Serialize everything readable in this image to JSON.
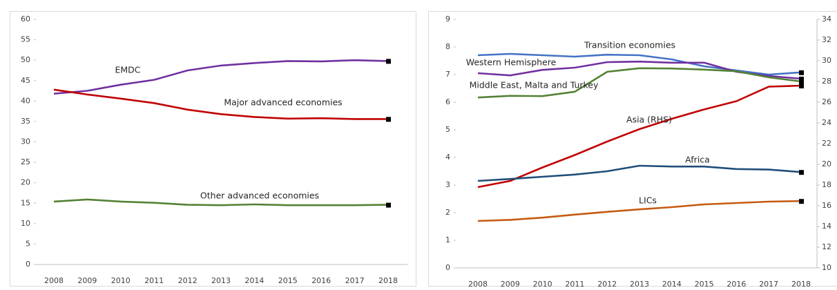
{
  "chart_data": [
    {
      "type": "line",
      "categories": [
        "2008",
        "2009",
        "2010",
        "2011",
        "2012",
        "2013",
        "2014",
        "2015",
        "2016",
        "2017",
        "2018"
      ],
      "ylim": [
        0,
        60
      ],
      "yticks": [
        0,
        5,
        10,
        15,
        20,
        25,
        30,
        35,
        40,
        45,
        50,
        55,
        60
      ],
      "series": [
        {
          "name": "EMDC",
          "color": "#7030a0",
          "values": [
            41.8,
            42.5,
            44.0,
            45.2,
            47.5,
            48.7,
            49.3,
            49.8,
            49.7,
            50.0,
            49.8
          ]
        },
        {
          "name": "Major advanced economies",
          "color": "#c00000",
          "values": [
            42.8,
            41.6,
            40.6,
            39.5,
            37.9,
            36.8,
            36.1,
            35.7,
            35.8,
            35.6,
            35.6
          ]
        },
        {
          "name": "Other advanced economies",
          "color": "#548235",
          "values": [
            15.4,
            15.9,
            15.4,
            15.1,
            14.6,
            14.5,
            14.7,
            14.5,
            14.5,
            14.5,
            14.6
          ]
        }
      ]
    },
    {
      "type": "line",
      "categories": [
        "2008",
        "2009",
        "2010",
        "2011",
        "2012",
        "2013",
        "2014",
        "2015",
        "2016",
        "2017",
        "2018"
      ],
      "ylim": [
        0,
        9
      ],
      "yticks": [
        0,
        1,
        2,
        3,
        4,
        5,
        6,
        7,
        8,
        9
      ],
      "y2lim": [
        10,
        34
      ],
      "y2ticks": [
        10,
        12,
        14,
        16,
        18,
        20,
        22,
        24,
        26,
        28,
        30,
        32,
        34
      ],
      "series": [
        {
          "name": "Transition economies",
          "color": "#4472c4",
          "values": [
            7.7,
            7.75,
            7.7,
            7.65,
            7.72,
            7.7,
            7.55,
            7.3,
            7.15,
            7.0,
            7.08
          ]
        },
        {
          "name": "Western Hemisphere",
          "color": "#7030a0",
          "values": [
            7.05,
            6.97,
            7.17,
            7.25,
            7.45,
            7.47,
            7.43,
            7.43,
            7.1,
            6.95,
            6.85
          ]
        },
        {
          "name": "Middle East, Malta and Turkey",
          "color": "#548235",
          "values": [
            6.17,
            6.23,
            6.22,
            6.38,
            7.1,
            7.23,
            7.22,
            7.18,
            7.12,
            6.9,
            6.75
          ]
        },
        {
          "name": "Asia (RHS)",
          "color": "#c00000",
          "axis": "y2",
          "values": [
            17.8,
            18.4,
            19.7,
            20.9,
            22.2,
            23.4,
            24.4,
            25.3,
            26.1,
            27.5,
            27.6
          ]
        },
        {
          "name": "Africa",
          "color": "#1f4e79",
          "values": [
            3.15,
            3.22,
            3.3,
            3.38,
            3.5,
            3.7,
            3.67,
            3.67,
            3.58,
            3.56,
            3.47
          ]
        },
        {
          "name": "LICs",
          "color": "#c55a11",
          "values": [
            1.7,
            1.74,
            1.82,
            1.93,
            2.03,
            2.12,
            2.2,
            2.3,
            2.35,
            2.4,
            2.42
          ]
        }
      ]
    }
  ]
}
